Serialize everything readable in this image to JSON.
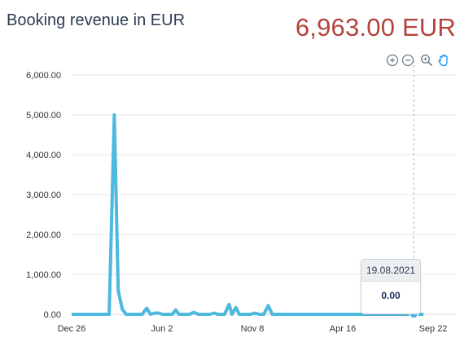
{
  "header": {
    "title": "Booking revenue in EUR",
    "total": "6,963.00 EUR"
  },
  "toolbar": {
    "icons": [
      "zoom-in-icon",
      "zoom-out-icon",
      "selection-zoom-icon",
      "pan-hand-icon"
    ]
  },
  "colors": {
    "series": "#4db8e0",
    "total": "#b5433d",
    "title": "#2d3c52",
    "toolbar_icon": "#6e8192",
    "toolbar_active": "#008ffb"
  },
  "tooltip": {
    "date": "19.08.2021",
    "value": "0.00"
  },
  "chart_data": {
    "type": "line",
    "title": "",
    "xlabel": "",
    "ylabel": "",
    "ylim": [
      0,
      6000
    ],
    "xlim": [
      "2019-12-26",
      "2021-09-05"
    ],
    "y_ticks": [
      "0.00",
      "1,000.00",
      "2,000.00",
      "3,000.00",
      "4,000.00",
      "5,000.00",
      "6,000.00"
    ],
    "x_ticks": [
      {
        "date": "2019-12-26",
        "label": "Dec 26"
      },
      {
        "date": "2020-06-02",
        "label": "Jun 2"
      },
      {
        "date": "2020-11-08",
        "label": "Nov 8"
      },
      {
        "date": "2021-04-16",
        "label": "Apr 16"
      },
      {
        "date": "2021-09-22",
        "label": "Sep 22"
      }
    ],
    "grid": true,
    "legend": "none",
    "crosshair_date": "2021-08-19",
    "series": [
      {
        "points": [
          [
            "2019-12-26",
            0
          ],
          [
            "2020-03-01",
            0
          ],
          [
            "2020-03-10",
            5000
          ],
          [
            "2020-03-17",
            600
          ],
          [
            "2020-03-24",
            130
          ],
          [
            "2020-03-31",
            0
          ],
          [
            "2020-04-28",
            0
          ],
          [
            "2020-05-06",
            150
          ],
          [
            "2020-05-13",
            0
          ],
          [
            "2020-05-20",
            30
          ],
          [
            "2020-05-27",
            30
          ],
          [
            "2020-06-03",
            0
          ],
          [
            "2020-06-20",
            0
          ],
          [
            "2020-06-26",
            110
          ],
          [
            "2020-07-02",
            0
          ],
          [
            "2020-07-20",
            0
          ],
          [
            "2020-07-28",
            50
          ],
          [
            "2020-08-05",
            0
          ],
          [
            "2020-08-25",
            0
          ],
          [
            "2020-09-02",
            30
          ],
          [
            "2020-09-08",
            0
          ],
          [
            "2020-09-20",
            0
          ],
          [
            "2020-09-28",
            250
          ],
          [
            "2020-10-03",
            0
          ],
          [
            "2020-10-10",
            170
          ],
          [
            "2020-10-16",
            0
          ],
          [
            "2020-11-05",
            0
          ],
          [
            "2020-11-12",
            30
          ],
          [
            "2020-11-20",
            0
          ],
          [
            "2020-11-28",
            0
          ],
          [
            "2020-12-06",
            220
          ],
          [
            "2020-12-13",
            0
          ],
          [
            "2021-08-19",
            0
          ],
          [
            "2021-09-05",
            0
          ]
        ]
      }
    ]
  }
}
